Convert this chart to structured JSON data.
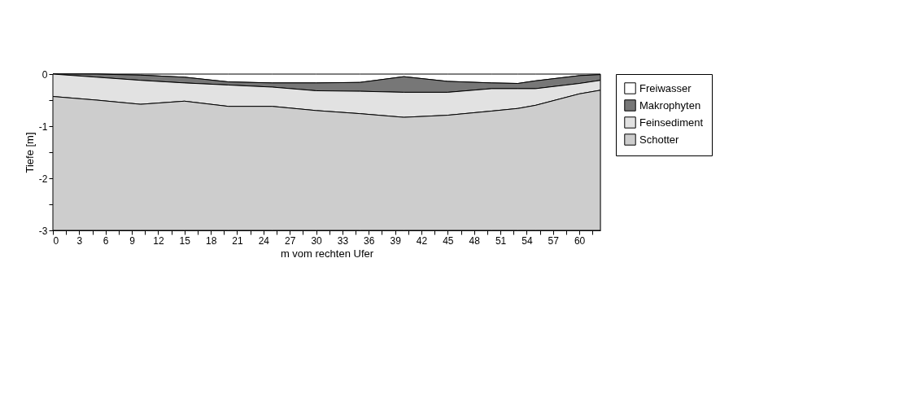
{
  "chart_data": {
    "type": "area",
    "stacked": true,
    "xlabel": "m vom rechten Ufer",
    "ylabel": "Tiefe [m]",
    "x": [
      0,
      5,
      10,
      15,
      20,
      25,
      30,
      35,
      40,
      45,
      50,
      53,
      55,
      60,
      62.4
    ],
    "series": [
      {
        "name": "Freiwasser",
        "color": "#ffffff",
        "values": [
          0,
          0,
          -0.02,
          -0.06,
          -0.15,
          -0.17,
          -0.17,
          -0.16,
          -0.05,
          -0.14,
          -0.17,
          -0.18,
          -0.13,
          -0.03,
          -0.01
        ]
      },
      {
        "name": "Makrophyten",
        "color": "#777777",
        "values": [
          0,
          -0.06,
          -0.1,
          -0.11,
          -0.06,
          -0.08,
          -0.15,
          -0.17,
          -0.3,
          -0.21,
          -0.11,
          -0.1,
          -0.15,
          -0.15,
          -0.11
        ]
      },
      {
        "name": "Feinsediment",
        "color": "#e2e2e2",
        "values": [
          -0.43,
          -0.44,
          -0.46,
          -0.35,
          -0.41,
          -0.37,
          -0.38,
          -0.43,
          -0.48,
          -0.44,
          -0.43,
          -0.38,
          -0.32,
          -0.2,
          -0.19
        ]
      },
      {
        "name": "Schotter",
        "color": "#cdcdcd",
        "values": [
          -2.57,
          -2.5,
          -2.42,
          -2.48,
          -2.38,
          -2.38,
          -2.3,
          -2.24,
          -2.17,
          -2.21,
          -2.29,
          -2.34,
          -2.4,
          -2.62,
          -2.69
        ]
      }
    ],
    "xlim": [
      0,
      62.4
    ],
    "ylim": [
      -3,
      0
    ],
    "xticks": [
      0,
      {
        "value": 1.5,
        "label": null
      },
      3,
      {
        "value": 4.5,
        "label": null
      },
      6,
      {
        "value": 7.5,
        "label": null
      },
      9,
      {
        "value": 10.5,
        "label": null
      },
      12,
      {
        "value": 13.5,
        "label": null
      },
      15,
      {
        "value": 16.5,
        "label": null
      },
      18,
      {
        "value": 19.5,
        "label": null
      },
      21,
      {
        "value": 22.5,
        "label": null
      },
      24,
      {
        "value": 25.5,
        "label": null
      },
      27,
      {
        "value": 28.5,
        "label": null
      },
      30,
      {
        "value": 31.5,
        "label": null
      },
      33,
      {
        "value": 34.5,
        "label": null
      },
      36,
      {
        "value": 37.5,
        "label": null
      },
      39,
      {
        "value": 40.5,
        "label": null
      },
      42,
      {
        "value": 43.5,
        "label": null
      },
      45,
      {
        "value": 46.5,
        "label": null
      },
      48,
      {
        "value": 49.5,
        "label": null
      },
      51,
      {
        "value": 52.5,
        "label": null
      },
      54,
      {
        "value": 55.5,
        "label": null
      },
      57,
      {
        "value": 58.5,
        "label": null
      },
      60,
      {
        "value": 61.5,
        "label": null
      }
    ],
    "yticks": [
      -3,
      {
        "value": -2.5,
        "label": null
      },
      -2,
      {
        "value": -1.5,
        "label": null
      },
      -1,
      {
        "value": -0.5,
        "label": null
      },
      0
    ],
    "legend": "right"
  }
}
